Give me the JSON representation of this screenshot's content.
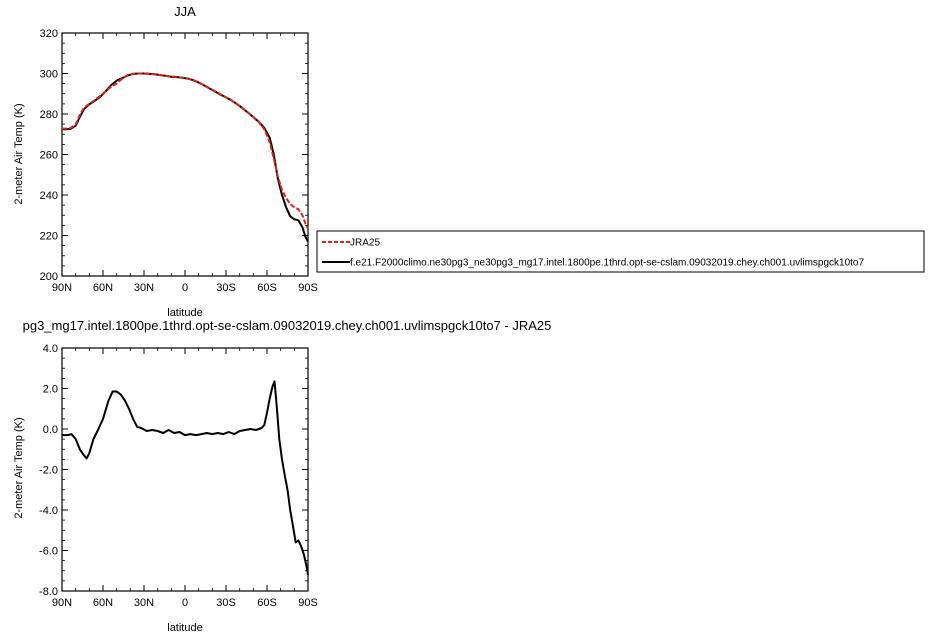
{
  "chart_data": [
    {
      "type": "line",
      "title": "JJA",
      "xlabel": "latitude",
      "ylabel": "2-meter Air Temp (K)",
      "xticks": [
        "90N",
        "60N",
        "30N",
        "0",
        "30S",
        "60S",
        "90S"
      ],
      "xlim": [
        90,
        -90
      ],
      "yticks": [
        "200",
        "220",
        "240",
        "260",
        "280",
        "300",
        "320"
      ],
      "ylim": [
        200,
        320
      ],
      "legend_position": "right",
      "series": [
        {
          "name": "JRA25",
          "color": "#e0221b",
          "style": "dashed",
          "points": [
            [
              90,
              272.8
            ],
            [
              87,
              272.8
            ],
            [
              84,
              273
            ],
            [
              80,
              274.8
            ],
            [
              77,
              279.5
            ],
            [
              74,
              283
            ],
            [
              70,
              285
            ],
            [
              66,
              286.8
            ],
            [
              62,
              289
            ],
            [
              58,
              291.2
            ],
            [
              54,
              293.5
            ],
            [
              50,
              295
            ],
            [
              46,
              297.5
            ],
            [
              42,
              299.2
            ],
            [
              38,
              299.8
            ],
            [
              34,
              300
            ],
            [
              30,
              300
            ],
            [
              26,
              299.8
            ],
            [
              22,
              299.6
            ],
            [
              18,
              299.2
            ],
            [
              14,
              298.8
            ],
            [
              10,
              298.5
            ],
            [
              6,
              298.3
            ],
            [
              2,
              298
            ],
            [
              -2,
              297.6
            ],
            [
              -6,
              296.8
            ],
            [
              -10,
              295.6
            ],
            [
              -14,
              294.2
            ],
            [
              -18,
              292.7
            ],
            [
              -22,
              291.2
            ],
            [
              -26,
              289.8
            ],
            [
              -30,
              288.3
            ],
            [
              -34,
              286.8
            ],
            [
              -38,
              285
            ],
            [
              -42,
              283
            ],
            [
              -46,
              280.8
            ],
            [
              -50,
              278.5
            ],
            [
              -54,
              276
            ],
            [
              -58,
              272.5
            ],
            [
              -62,
              266
            ],
            [
              -65,
              258
            ],
            [
              -68,
              249
            ],
            [
              -71,
              242.5
            ],
            [
              -74,
              238.5
            ],
            [
              -77,
              235.5
            ],
            [
              -80,
              234
            ],
            [
              -83,
              233
            ],
            [
              -86,
              230
            ],
            [
              -88,
              226
            ],
            [
              -90,
              223.5
            ]
          ]
        },
        {
          "name": "f.e21.F2000climo.ne30pg3_ne30pg3_mg17.intel.1800pe.1thrd.opt-se-cslam.09032019.chey.ch001.uvlimspgck10to7",
          "color": "#000000",
          "style": "solid",
          "points": [
            [
              90,
              272.5
            ],
            [
              87,
              272.5
            ],
            [
              84,
              272.6
            ],
            [
              80,
              274.2
            ],
            [
              77,
              278.5
            ],
            [
              74,
              282.3
            ],
            [
              70,
              284.8
            ],
            [
              66,
              286.5
            ],
            [
              62,
              288.5
            ],
            [
              58,
              291.2
            ],
            [
              54,
              294.3
            ],
            [
              50,
              296.5
            ],
            [
              46,
              297.7
            ],
            [
              42,
              299
            ],
            [
              38,
              299.8
            ],
            [
              34,
              300
            ],
            [
              30,
              300
            ],
            [
              26,
              299.8
            ],
            [
              22,
              299.6
            ],
            [
              18,
              299.2
            ],
            [
              14,
              298.8
            ],
            [
              10,
              298.4
            ],
            [
              6,
              298.2
            ],
            [
              2,
              297.9
            ],
            [
              -2,
              297.5
            ],
            [
              -6,
              296.7
            ],
            [
              -10,
              295.5
            ],
            [
              -14,
              294.1
            ],
            [
              -18,
              292.6
            ],
            [
              -22,
              291.1
            ],
            [
              -26,
              289.6
            ],
            [
              -30,
              288.2
            ],
            [
              -34,
              286.7
            ],
            [
              -38,
              284.9
            ],
            [
              -42,
              282.9
            ],
            [
              -46,
              280.7
            ],
            [
              -50,
              278.5
            ],
            [
              -54,
              276.1
            ],
            [
              -58,
              273.2
            ],
            [
              -62,
              268.3
            ],
            [
              -65,
              260
            ],
            [
              -68,
              248
            ],
            [
              -71,
              240
            ],
            [
              -74,
              234
            ],
            [
              -77,
              229.5
            ],
            [
              -80,
              228
            ],
            [
              -83,
              227.5
            ],
            [
              -86,
              224
            ],
            [
              -88,
              219.5
            ],
            [
              -90,
              217
            ]
          ]
        }
      ]
    },
    {
      "type": "line",
      "title": "pg3_mg17.intel.1800pe.1thrd.opt-se-cslam.09032019.chey.ch001.uvlimspgck10to7 - JRA25",
      "xlabel": "latitude",
      "ylabel": "2-meter Air Temp (K)",
      "xticks": [
        "90N",
        "60N",
        "30N",
        "0",
        "30S",
        "60S",
        "90S"
      ],
      "xlim": [
        90,
        -90
      ],
      "yticks": [
        "-8.0",
        "-6.0",
        "-4.0",
        "-2.0",
        "0.0",
        "2.0",
        "4.0"
      ],
      "ylim": [
        -8,
        4
      ],
      "series": [
        {
          "name": "",
          "color": "#000000",
          "style": "solid",
          "points": [
            [
              90,
              -0.3
            ],
            [
              86,
              -0.3
            ],
            [
              83,
              -0.25
            ],
            [
              80,
              -0.5
            ],
            [
              77,
              -1.0
            ],
            [
              74,
              -1.3
            ],
            [
              72,
              -1.45
            ],
            [
              70,
              -1.2
            ],
            [
              67,
              -0.5
            ],
            [
              64,
              -0.1
            ],
            [
              60,
              0.5
            ],
            [
              56,
              1.4
            ],
            [
              53,
              1.85
            ],
            [
              50,
              1.85
            ],
            [
              47,
              1.7
            ],
            [
              44,
              1.4
            ],
            [
              41,
              1.0
            ],
            [
              38,
              0.5
            ],
            [
              35,
              0.1
            ],
            [
              32,
              0.05
            ],
            [
              28,
              -0.1
            ],
            [
              24,
              -0.05
            ],
            [
              20,
              -0.1
            ],
            [
              16,
              -0.2
            ],
            [
              12,
              -0.05
            ],
            [
              8,
              -0.2
            ],
            [
              4,
              -0.15
            ],
            [
              0,
              -0.3
            ],
            [
              -4,
              -0.25
            ],
            [
              -8,
              -0.3
            ],
            [
              -12,
              -0.25
            ],
            [
              -16,
              -0.2
            ],
            [
              -20,
              -0.25
            ],
            [
              -24,
              -0.2
            ],
            [
              -28,
              -0.25
            ],
            [
              -32,
              -0.15
            ],
            [
              -36,
              -0.25
            ],
            [
              -40,
              -0.1
            ],
            [
              -44,
              -0.05
            ],
            [
              -48,
              0
            ],
            [
              -52,
              -0.05
            ],
            [
              -56,
              0.05
            ],
            [
              -58,
              0.2
            ],
            [
              -60,
              0.8
            ],
            [
              -62,
              1.5
            ],
            [
              -64,
              2.1
            ],
            [
              -65.5,
              2.35
            ],
            [
              -67,
              1.2
            ],
            [
              -69,
              -0.5
            ],
            [
              -71,
              -1.5
            ],
            [
              -73,
              -2.3
            ],
            [
              -75,
              -3.0
            ],
            [
              -77,
              -4.0
            ],
            [
              -79,
              -4.8
            ],
            [
              -81,
              -5.6
            ],
            [
              -83,
              -5.5
            ],
            [
              -85,
              -5.8
            ],
            [
              -87,
              -6.2
            ],
            [
              -89,
              -6.8
            ],
            [
              -90,
              -7.2
            ]
          ]
        }
      ]
    }
  ]
}
